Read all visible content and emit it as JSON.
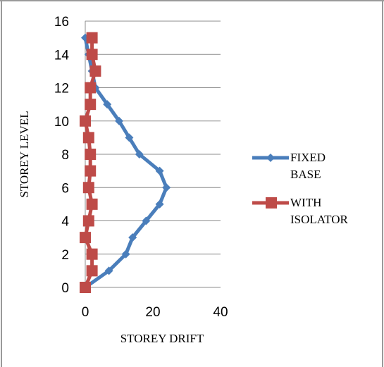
{
  "chart_data": {
    "type": "line",
    "xlabel": "STOREY DRIFT",
    "ylabel": "STOREY LEVEL",
    "xlim": [
      0,
      40
    ],
    "ylim": [
      0,
      16
    ],
    "x_ticks": [
      "0",
      "20",
      "40"
    ],
    "y_ticks": [
      "0",
      "2",
      "4",
      "6",
      "8",
      "10",
      "12",
      "14",
      "16"
    ],
    "grid": "horizontal",
    "legend": "right",
    "series": [
      {
        "name": "FIXED BASE",
        "color": "#4a7ebb",
        "marker": "diamond",
        "points": [
          {
            "x": 0,
            "y": 0
          },
          {
            "x": 7,
            "y": 1
          },
          {
            "x": 12,
            "y": 2
          },
          {
            "x": 14,
            "y": 3
          },
          {
            "x": 18,
            "y": 4
          },
          {
            "x": 22,
            "y": 5
          },
          {
            "x": 24,
            "y": 6
          },
          {
            "x": 22,
            "y": 7
          },
          {
            "x": 16,
            "y": 8
          },
          {
            "x": 13,
            "y": 9
          },
          {
            "x": 10,
            "y": 10
          },
          {
            "x": 6.5,
            "y": 11
          },
          {
            "x": 3,
            "y": 12
          },
          {
            "x": 2,
            "y": 13
          },
          {
            "x": 1,
            "y": 14
          },
          {
            "x": 0,
            "y": 15
          }
        ]
      },
      {
        "name": "WITH ISOLATOR",
        "color": "#be4b48",
        "marker": "square",
        "points": [
          {
            "x": 0,
            "y": 0
          },
          {
            "x": 2,
            "y": 1
          },
          {
            "x": 2,
            "y": 2
          },
          {
            "x": 0,
            "y": 3
          },
          {
            "x": 1,
            "y": 4
          },
          {
            "x": 2,
            "y": 5
          },
          {
            "x": 1,
            "y": 6
          },
          {
            "x": 1.5,
            "y": 7
          },
          {
            "x": 1.5,
            "y": 8
          },
          {
            "x": 1,
            "y": 9
          },
          {
            "x": 0,
            "y": 10
          },
          {
            "x": 1.5,
            "y": 11
          },
          {
            "x": 1.5,
            "y": 12
          },
          {
            "x": 3,
            "y": 13
          },
          {
            "x": 2,
            "y": 14
          },
          {
            "x": 2,
            "y": 15
          }
        ]
      }
    ],
    "legend_lines": [
      [
        "FIXED",
        "BASE"
      ],
      [
        "WITH",
        "ISOLATOR"
      ]
    ]
  }
}
